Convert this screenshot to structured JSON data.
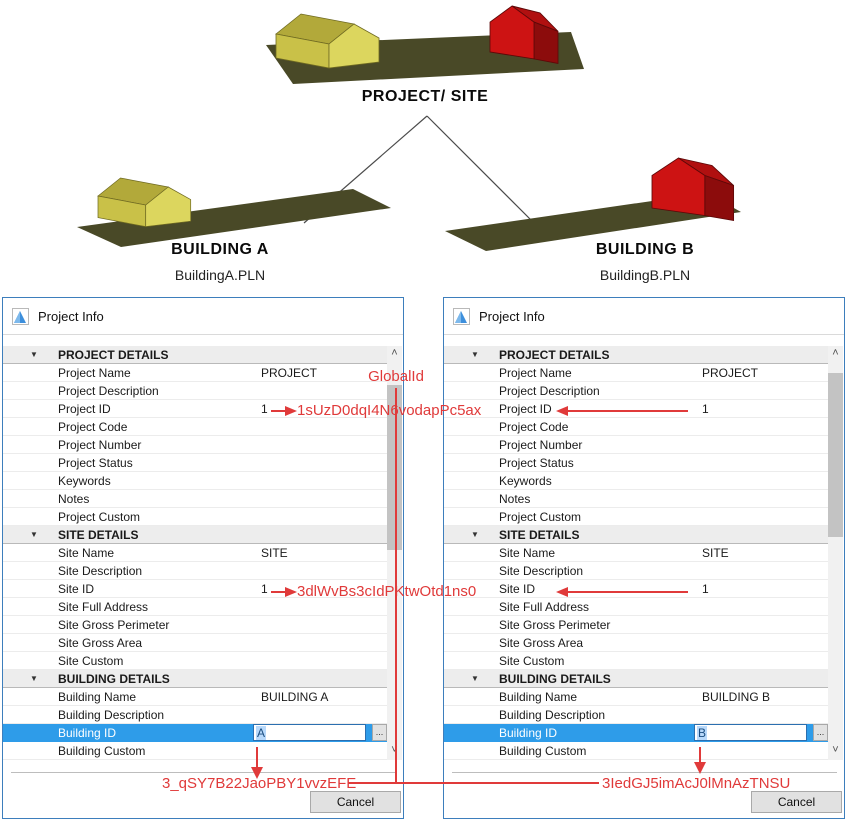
{
  "diagram": {
    "root_label": "PROJECT/ SITE",
    "buildings": [
      {
        "label": "BUILDING A",
        "file": "BuildingA.PLN"
      },
      {
        "label": "BUILDING B",
        "file": "BuildingB.PLN"
      }
    ],
    "colors": {
      "ground": "#494927",
      "house_yellow": "#dcd65e",
      "house_red": "#cd1313"
    }
  },
  "annotations": {
    "heading": "GlobalId",
    "project_id_guid": "1sUzD0dqI4N6vodapPc5ax",
    "site_id_guid": "3dlWvBs3cIdPKtwOtd1ns0",
    "building_a_guid": "3_qSY7B22JaoPBY1vvzEFE",
    "building_b_guid": "3IedGJ5imAcJ0lMnAzTNSU",
    "color": "#e03a3a"
  },
  "icons": {
    "collapse": "▼",
    "scroll_up": "˄",
    "scroll_down": "˅",
    "dots": "..."
  },
  "dialogs": [
    {
      "title": "Project Info",
      "cancel": "Cancel",
      "rows": [
        {
          "type": "section",
          "label": "PROJECT DETAILS"
        },
        {
          "type": "row",
          "label": "Project Name",
          "value": "PROJECT"
        },
        {
          "type": "row",
          "label": "Project Description",
          "value": ""
        },
        {
          "type": "row",
          "label": "Project ID",
          "value": "1"
        },
        {
          "type": "row",
          "label": "Project Code",
          "value": ""
        },
        {
          "type": "row",
          "label": "Project Number",
          "value": ""
        },
        {
          "type": "row",
          "label": "Project Status",
          "value": ""
        },
        {
          "type": "row",
          "label": "Keywords",
          "value": ""
        },
        {
          "type": "row",
          "label": "Notes",
          "value": ""
        },
        {
          "type": "row",
          "label": "Project Custom",
          "value": ""
        },
        {
          "type": "section",
          "label": "SITE DETAILS"
        },
        {
          "type": "row",
          "label": "Site Name",
          "value": "SITE"
        },
        {
          "type": "row",
          "label": "Site Description",
          "value": ""
        },
        {
          "type": "row",
          "label": "Site ID",
          "value": "1"
        },
        {
          "type": "row",
          "label": "Site Full Address",
          "value": ""
        },
        {
          "type": "row",
          "label": "Site Gross Perimeter",
          "value": ""
        },
        {
          "type": "row",
          "label": "Site Gross Area",
          "value": ""
        },
        {
          "type": "row",
          "label": "Site Custom",
          "value": ""
        },
        {
          "type": "section",
          "label": "BUILDING DETAILS"
        },
        {
          "type": "row",
          "label": "Building Name",
          "value": "BUILDING A"
        },
        {
          "type": "row",
          "label": "Building Description",
          "value": ""
        },
        {
          "type": "edit",
          "label": "Building ID",
          "value": "A",
          "button": "..."
        },
        {
          "type": "row",
          "label": "Building Custom",
          "value": ""
        }
      ]
    },
    {
      "title": "Project Info",
      "cancel": "Cancel",
      "rows": [
        {
          "type": "section",
          "label": "PROJECT DETAILS"
        },
        {
          "type": "row",
          "label": "Project Name",
          "value": "PROJECT"
        },
        {
          "type": "row",
          "label": "Project Description",
          "value": ""
        },
        {
          "type": "row",
          "label": "Project ID",
          "value": "1"
        },
        {
          "type": "row",
          "label": "Project Code",
          "value": ""
        },
        {
          "type": "row",
          "label": "Project Number",
          "value": ""
        },
        {
          "type": "row",
          "label": "Project Status",
          "value": ""
        },
        {
          "type": "row",
          "label": "Keywords",
          "value": ""
        },
        {
          "type": "row",
          "label": "Notes",
          "value": ""
        },
        {
          "type": "row",
          "label": "Project Custom",
          "value": ""
        },
        {
          "type": "section",
          "label": "SITE DETAILS"
        },
        {
          "type": "row",
          "label": "Site Name",
          "value": "SITE"
        },
        {
          "type": "row",
          "label": "Site Description",
          "value": ""
        },
        {
          "type": "row",
          "label": "Site ID",
          "value": "1"
        },
        {
          "type": "row",
          "label": "Site Full Address",
          "value": ""
        },
        {
          "type": "row",
          "label": "Site Gross Perimeter",
          "value": ""
        },
        {
          "type": "row",
          "label": "Site Gross Area",
          "value": ""
        },
        {
          "type": "row",
          "label": "Site Custom",
          "value": ""
        },
        {
          "type": "section",
          "label": "BUILDING DETAILS"
        },
        {
          "type": "row",
          "label": "Building Name",
          "value": "BUILDING B"
        },
        {
          "type": "row",
          "label": "Building Description",
          "value": ""
        },
        {
          "type": "edit",
          "label": "Building ID",
          "value": "B",
          "button": "..."
        },
        {
          "type": "row",
          "label": "Building Custom",
          "value": ""
        }
      ]
    }
  ]
}
